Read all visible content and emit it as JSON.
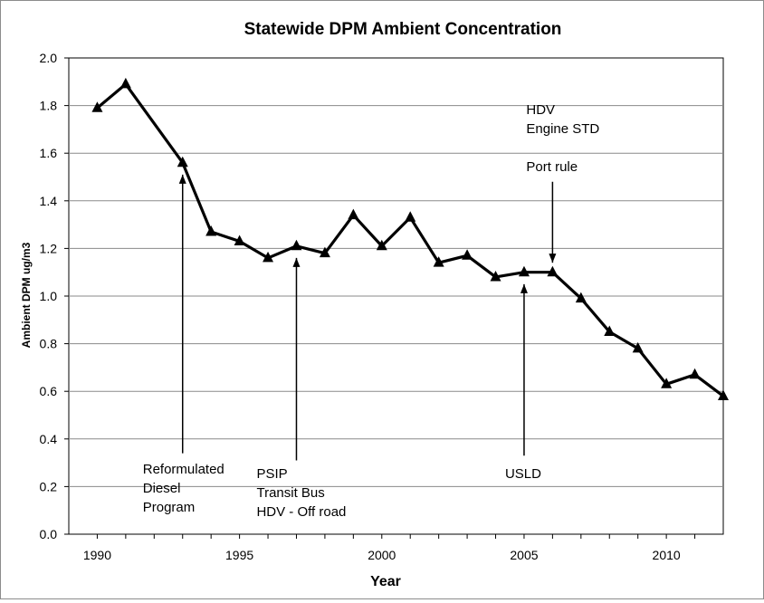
{
  "chart_data": {
    "type": "line",
    "title": "Statewide DPM Ambient Concentration",
    "xlabel": "Year",
    "ylabel": "Ambient DPM ug/m3",
    "xlim": [
      1989,
      2012
    ],
    "ylim": [
      0.0,
      2.0
    ],
    "x_ticks": [
      "1990",
      "1995",
      "2000",
      "2005",
      "2010"
    ],
    "y_ticks": [
      "0.0",
      "0.2",
      "0.4",
      "0.6",
      "0.8",
      "1.0",
      "1.2",
      "1.4",
      "1.6",
      "1.8",
      "2.0"
    ],
    "grid": true,
    "marker": "triangle",
    "line_color": "#000000",
    "series": [
      {
        "x": [
          1990,
          1991,
          1993,
          1994,
          1995,
          1996,
          1997,
          1998,
          1999,
          2000,
          2001,
          2002,
          2003,
          2004,
          2005,
          2006,
          2007,
          2008,
          2009,
          2010,
          2011,
          2012
        ],
        "values": [
          1.79,
          1.89,
          1.56,
          1.27,
          1.23,
          1.16,
          1.21,
          1.18,
          1.34,
          1.21,
          1.33,
          1.14,
          1.17,
          1.08,
          1.1,
          1.1,
          0.99,
          0.85,
          0.78,
          0.63,
          0.67,
          0.58
        ]
      }
    ],
    "annotations": [
      {
        "lines": [
          "Reformulated",
          "Diesel",
          "Program"
        ],
        "year": 1993,
        "arrow_from": 0.34,
        "arrow_to": 1.51,
        "label_y": 0.255
      },
      {
        "lines": [
          "PSIP",
          "Transit Bus",
          "HDV - Off road"
        ],
        "year": 1997,
        "arrow_from": 0.31,
        "arrow_to": 1.16,
        "label_y": 0.235
      },
      {
        "lines": [
          "USLD"
        ],
        "year": 2005,
        "arrow_from": 0.33,
        "arrow_to": 1.05,
        "label_y": 0.235
      },
      {
        "lines": [
          "HDV",
          "Engine STD",
          "",
          "Port rule"
        ],
        "year": 2006,
        "arrow_from": 1.48,
        "arrow_to": 1.14,
        "label_y": 1.765
      }
    ]
  }
}
